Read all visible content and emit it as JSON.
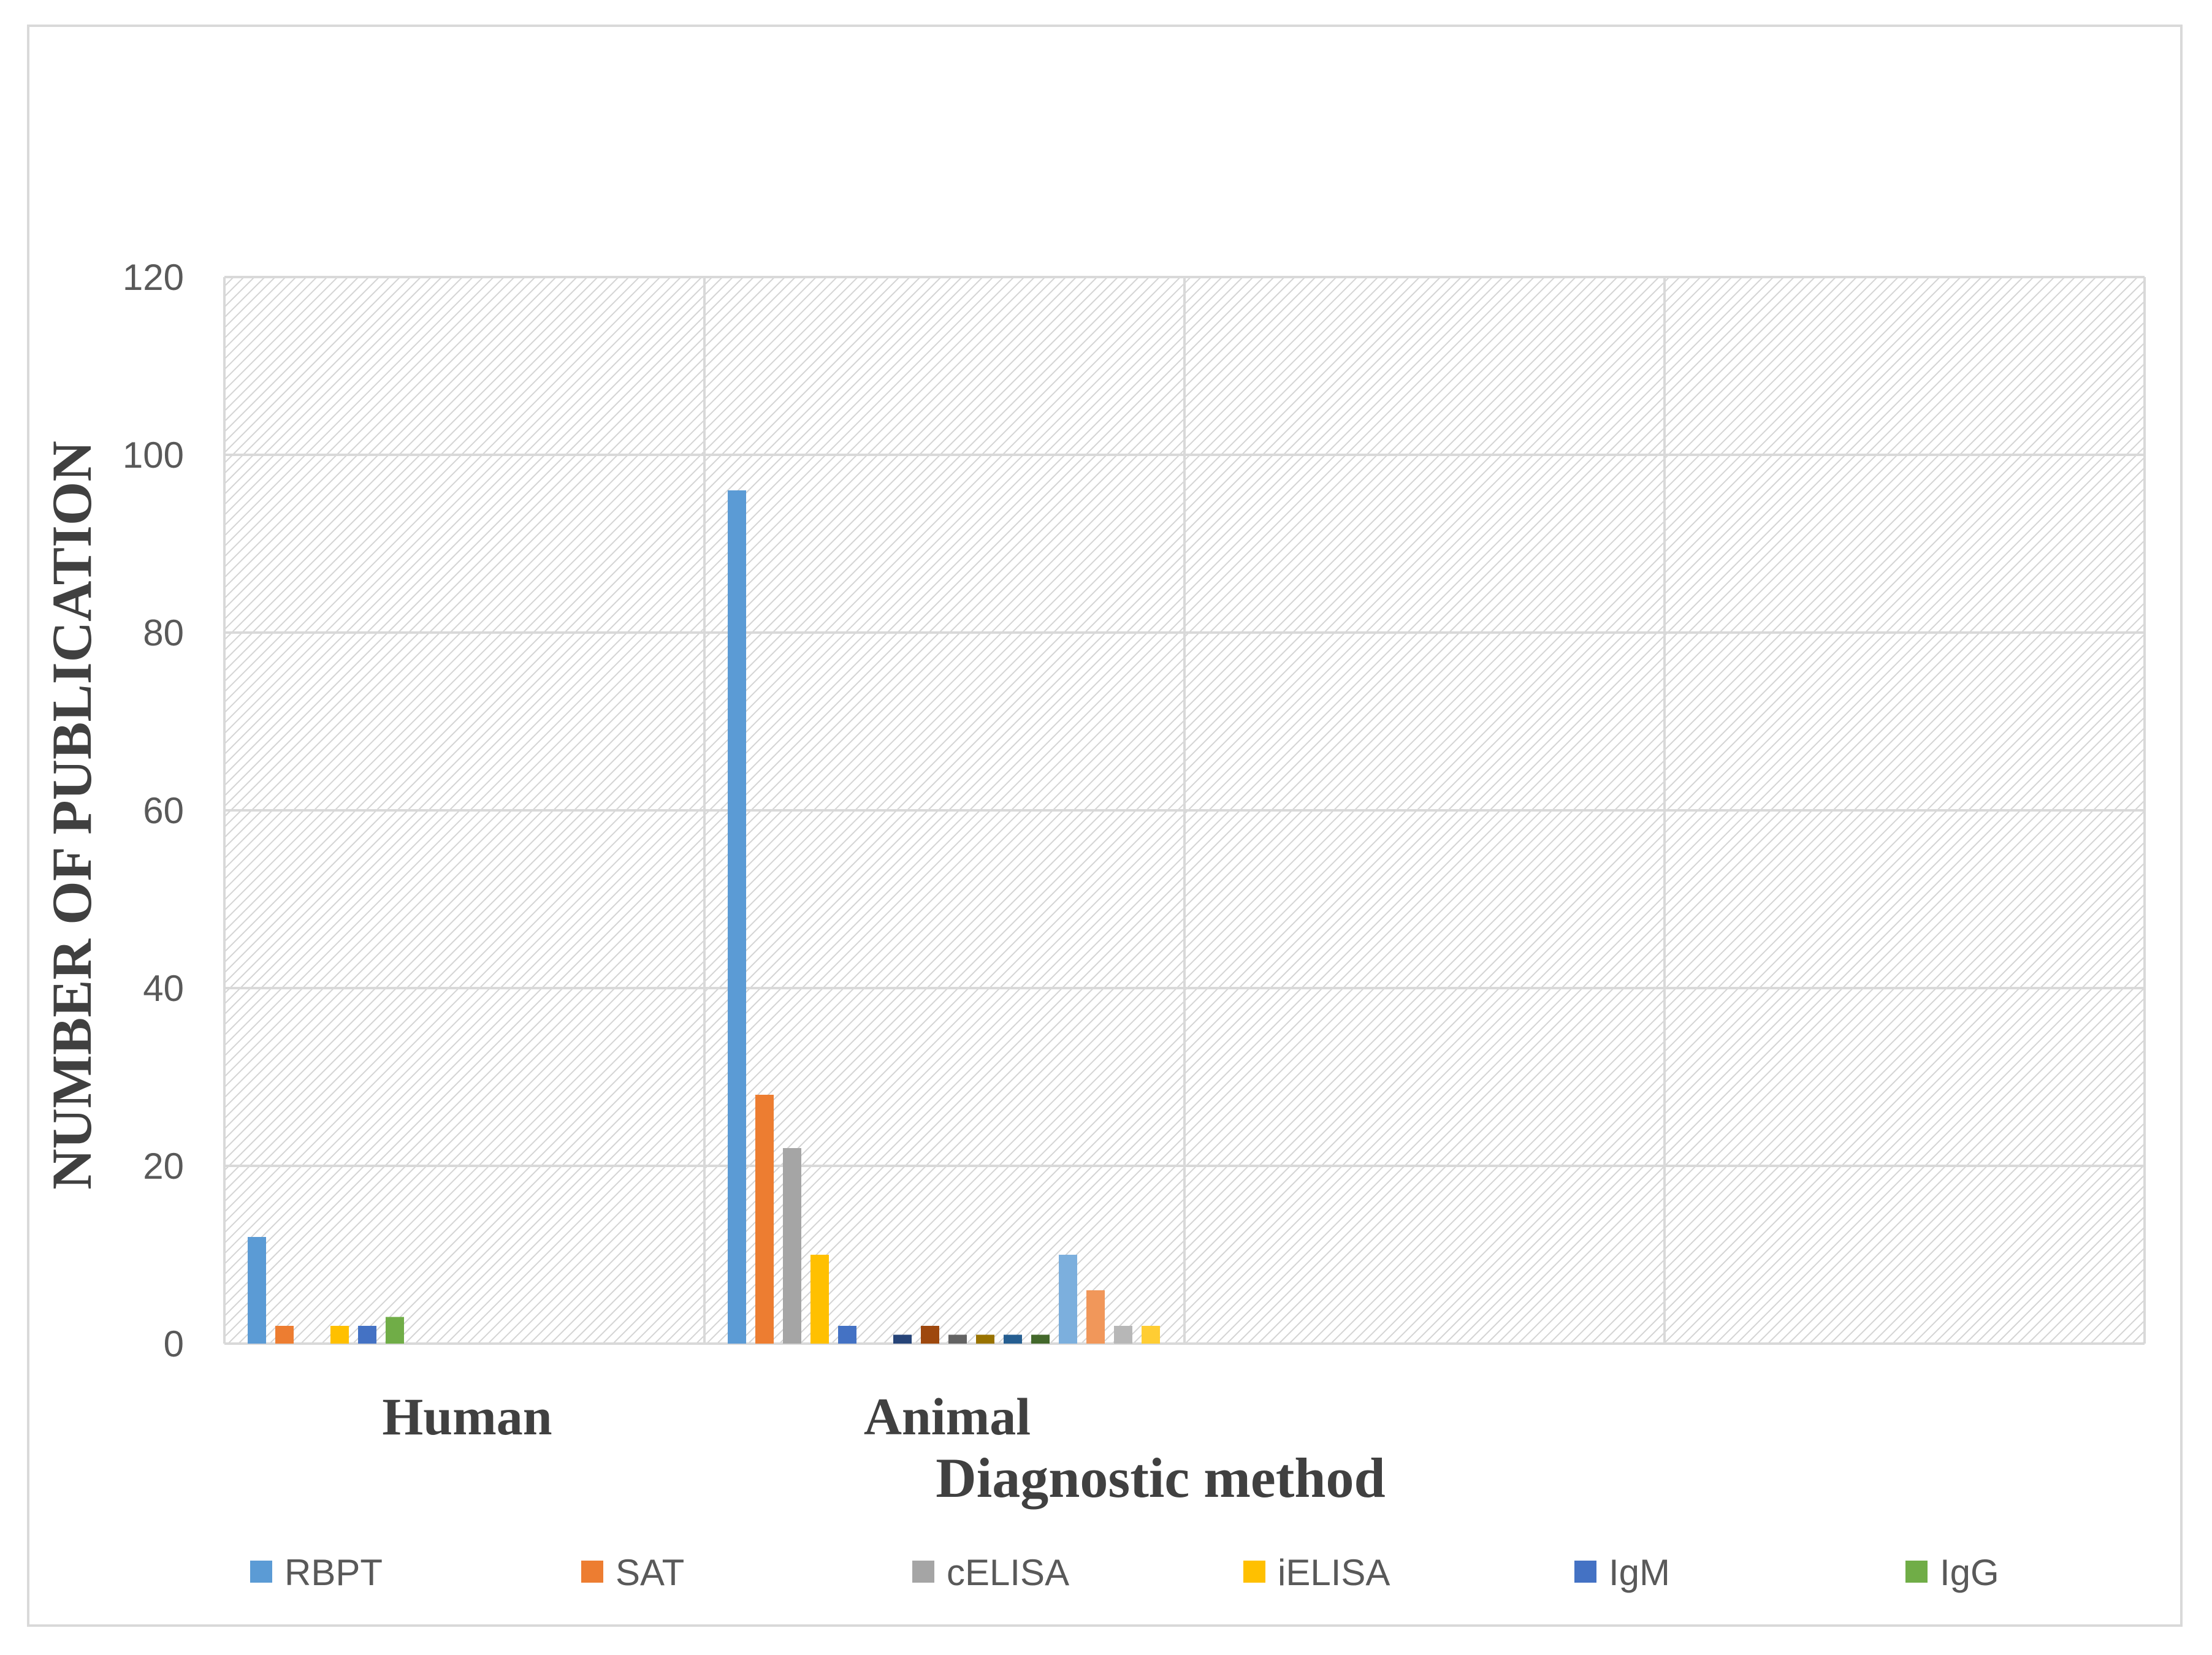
{
  "chart_data": {
    "type": "bar",
    "title": "",
    "xlabel": "Diagnostic method",
    "ylabel": "NUMBER OF PUBLICATION",
    "ylim": [
      0,
      120
    ],
    "yticks": [
      0,
      20,
      40,
      60,
      80,
      100,
      120
    ],
    "categories": [
      "Human",
      "Animal",
      "",
      ""
    ],
    "grid": true,
    "legend_position": "bottom",
    "bar_slots": 16,
    "series": [
      {
        "name": "RBPT",
        "color": "#5B9BD5",
        "values": [
          12,
          96,
          0,
          0
        ]
      },
      {
        "name": "SAT",
        "color": "#ED7D31",
        "values": [
          2,
          28,
          0,
          0
        ]
      },
      {
        "name": "cELISA",
        "color": "#A5A5A5",
        "values": [
          0,
          22,
          0,
          0
        ]
      },
      {
        "name": "iELISA",
        "color": "#FFC000",
        "values": [
          2,
          10,
          0,
          0
        ]
      },
      {
        "name": "IgM",
        "color": "#4472C4",
        "values": [
          2,
          2,
          0,
          0
        ]
      },
      {
        "name": "IgG",
        "color": "#70AD47",
        "values": [
          3,
          0,
          0,
          0
        ]
      },
      {
        "color": "#264478",
        "values": [
          0,
          1,
          0,
          0
        ]
      },
      {
        "color": "#9E480E",
        "values": [
          0,
          2,
          0,
          0
        ]
      },
      {
        "color": "#636363",
        "values": [
          0,
          1,
          0,
          0
        ]
      },
      {
        "color": "#997300",
        "values": [
          0,
          1,
          0,
          0
        ]
      },
      {
        "color": "#255E91",
        "values": [
          0,
          1,
          0,
          0
        ]
      },
      {
        "color": "#43682B",
        "values": [
          0,
          1,
          0,
          0
        ]
      },
      {
        "color": "#7CAFDD",
        "values": [
          0,
          10,
          0,
          0
        ]
      },
      {
        "color": "#F1975A",
        "values": [
          0,
          6,
          0,
          0
        ]
      },
      {
        "color": "#B7B7B7",
        "values": [
          0,
          2,
          0,
          0
        ]
      },
      {
        "color": "#FFCD33",
        "values": [
          0,
          2,
          0,
          0
        ]
      }
    ]
  }
}
